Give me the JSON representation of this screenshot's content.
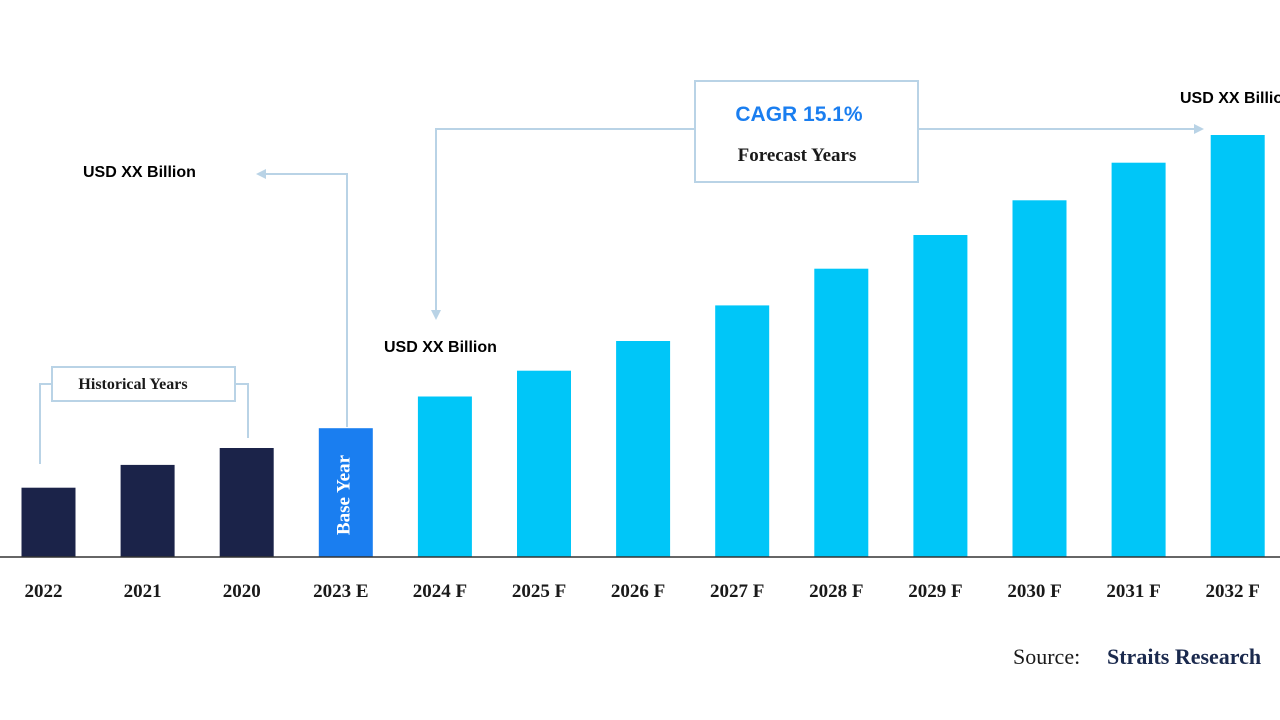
{
  "chart_data": {
    "type": "bar",
    "categories": [
      "2022",
      "2021",
      "2020",
      "2023 E",
      "2024 F",
      "2025 F",
      "2026 F",
      "2027 F",
      "2028 F",
      "2029 F",
      "2030 F",
      "2031 F",
      "2032 F"
    ],
    "values": [
      70,
      93,
      110,
      130,
      162,
      188,
      218,
      254,
      291,
      325,
      360,
      398,
      426
    ],
    "value_units": "relative bar height (no value axis shown)",
    "ylim": [
      0,
      430
    ],
    "grid": false,
    "bar_groups": [
      "historical",
      "historical",
      "historical",
      "base",
      "forecast",
      "forecast",
      "forecast",
      "forecast",
      "forecast",
      "forecast",
      "forecast",
      "forecast",
      "forecast"
    ],
    "colors": {
      "historical": "#1b2349",
      "base": "#1a7ef0",
      "forecast": "#00c6f8",
      "bracket": "#b9d3e6",
      "cagr": "#1a7ef0"
    }
  },
  "annotations": {
    "base_year_label": "Base Year",
    "historical_label": "Historical Years",
    "forecast_label": "Forecast Years",
    "cagr_label": "CAGR 15.1%",
    "usd_left": "USD XX Billion",
    "usd_mid": "USD XX Billion",
    "usd_right": "USD XX Billion"
  },
  "source": {
    "label": "Source:",
    "name": "Straits Research"
  }
}
